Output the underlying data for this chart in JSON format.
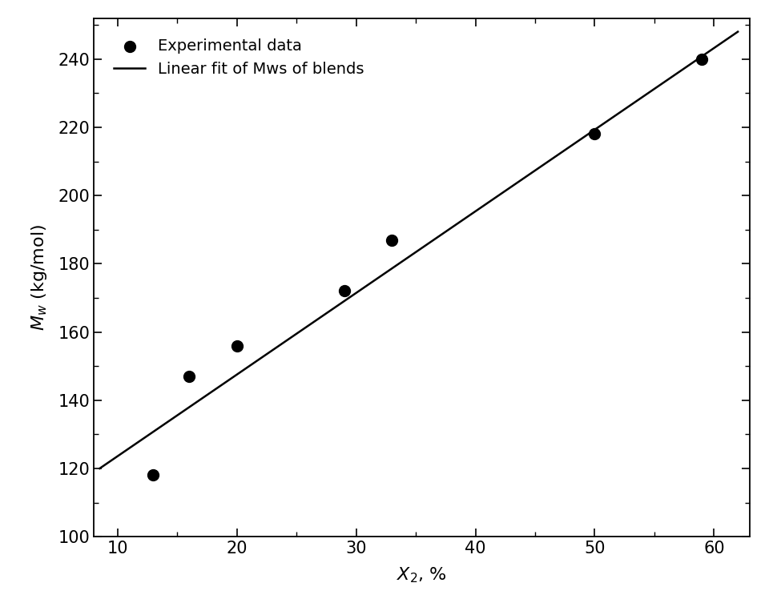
{
  "scatter_x": [
    13,
    16,
    20,
    29,
    33,
    50,
    59
  ],
  "scatter_y": [
    118,
    147,
    156,
    172,
    187,
    218,
    240
  ],
  "line_x": [
    8.5,
    62
  ],
  "line_y": [
    120,
    248
  ],
  "xlabel": "$X_{2}$, %",
  "ylabel": "$M_w$ (kg/mol)",
  "xlim": [
    8,
    63
  ],
  "ylim": [
    100,
    252
  ],
  "xticks": [
    10,
    20,
    30,
    40,
    50,
    60
  ],
  "yticks": [
    100,
    120,
    140,
    160,
    180,
    200,
    220,
    240
  ],
  "legend_labels": [
    "Experimental data",
    "Linear fit of Mws of blends"
  ],
  "scatter_color": "#000000",
  "line_color": "#000000",
  "scatter_size": 100,
  "background_color": "#ffffff",
  "tick_label_fontsize": 15,
  "axis_label_fontsize": 16,
  "legend_fontsize": 14
}
